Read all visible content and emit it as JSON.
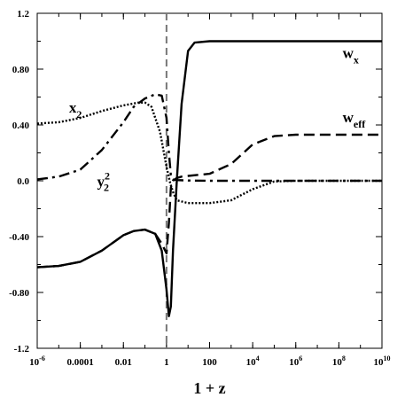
{
  "chart_data": {
    "type": "line",
    "title": "",
    "xlabel": "1 + z",
    "ylabel": "",
    "xscale": "log",
    "xlim": [
      1e-06,
      10000000000.0
    ],
    "ylim": [
      -1.2,
      1.2
    ],
    "grid": false,
    "legend": "none",
    "x_ticks": [
      {
        "value": 1e-06,
        "base": "10",
        "exp": "-6"
      },
      {
        "value": 0.0001,
        "base": "0.0001",
        "exp": ""
      },
      {
        "value": 0.01,
        "base": "0.01",
        "exp": ""
      },
      {
        "value": 1,
        "base": "1",
        "exp": ""
      },
      {
        "value": 100.0,
        "base": "100",
        "exp": ""
      },
      {
        "value": 10000.0,
        "base": "10",
        "exp": "4"
      },
      {
        "value": 1000000.0,
        "base": "10",
        "exp": "6"
      },
      {
        "value": 100000000.0,
        "base": "10",
        "exp": "8"
      },
      {
        "value": 10000000000.0,
        "base": "10",
        "exp": "10"
      }
    ],
    "y_ticks": [
      {
        "value": 1.2,
        "label": "1.2"
      },
      {
        "value": 0.8,
        "label": "0.80"
      },
      {
        "value": 0.4,
        "label": "0.40"
      },
      {
        "value": 0.0,
        "label": "0.0"
      },
      {
        "value": -0.4,
        "label": "-0.40"
      },
      {
        "value": -0.8,
        "label": "-0.80"
      },
      {
        "value": -1.2,
        "label": "-1.2"
      }
    ],
    "vertical_marker": {
      "x": 1,
      "style": "dashed",
      "color": "#777777"
    },
    "annotations": [
      {
        "id": "wx",
        "base": "w",
        "sub": "x",
        "sup": "",
        "x": 150000000.0,
        "y": 0.88
      },
      {
        "id": "weff",
        "base": "w",
        "sub": "eff",
        "sup": "",
        "x": 150000000.0,
        "y": 0.42
      },
      {
        "id": "x2",
        "base": "x",
        "sub": "2",
        "sup": "",
        "x": 3e-05,
        "y": 0.49
      },
      {
        "id": "y22",
        "base": "y",
        "sub": "2",
        "sup": "2",
        "x": 0.0006,
        "y": -0.04
      }
    ],
    "series": [
      {
        "id": "wx",
        "style": "solid",
        "color": "#000000",
        "x": [
          1e-06,
          1e-05,
          0.0001,
          0.001,
          0.01,
          0.03,
          0.1,
          0.3,
          0.6,
          1,
          1.3,
          1.6,
          2,
          3,
          5,
          10,
          20,
          100,
          1000.0,
          10000.0,
          1000000.0,
          100000000.0,
          10000000000.0
        ],
        "y": [
          -0.62,
          -0.61,
          -0.58,
          -0.5,
          -0.39,
          -0.36,
          -0.35,
          -0.38,
          -0.5,
          -0.78,
          -0.97,
          -0.9,
          -0.5,
          0.0,
          0.55,
          0.93,
          0.99,
          1.0,
          1.0,
          1.0,
          1.0,
          1.0,
          1.0
        ]
      },
      {
        "id": "weff",
        "style": "dashed",
        "color": "#000000",
        "x": [
          1e-06,
          1e-05,
          0.0001,
          0.001,
          0.01,
          0.03,
          0.1,
          0.3,
          0.6,
          1,
          1.3,
          1.6,
          2,
          3,
          5,
          10,
          100,
          1000.0,
          10000.0,
          100000.0,
          1000000.0,
          100000000.0,
          10000000000.0
        ],
        "y": [
          -0.62,
          -0.61,
          -0.58,
          -0.5,
          -0.39,
          -0.36,
          -0.35,
          -0.38,
          -0.45,
          -0.52,
          -0.3,
          -0.05,
          0.0,
          0.02,
          0.03,
          0.035,
          0.05,
          0.12,
          0.26,
          0.32,
          0.33,
          0.33,
          0.33
        ]
      },
      {
        "id": "x2",
        "style": "dotted",
        "color": "#000000",
        "x": [
          1e-06,
          1e-05,
          0.0001,
          0.001,
          0.01,
          0.05,
          0.1,
          0.2,
          0.5,
          1,
          1.5,
          2,
          3,
          10,
          100,
          1000.0,
          10000.0,
          100000.0,
          1000000.0,
          10000000000.0
        ],
        "y": [
          0.41,
          0.42,
          0.45,
          0.5,
          0.54,
          0.56,
          0.56,
          0.53,
          0.35,
          0.1,
          -0.02,
          -0.08,
          -0.14,
          -0.16,
          -0.16,
          -0.14,
          -0.06,
          -0.005,
          0.0,
          0.0
        ]
      },
      {
        "id": "y22",
        "style": "dashdot",
        "color": "#000000",
        "x": [
          1e-06,
          1e-05,
          0.0001,
          0.001,
          0.01,
          0.03,
          0.1,
          0.3,
          0.6,
          1,
          1.3,
          1.6,
          2,
          3,
          10,
          100,
          10000000000.0
        ],
        "y": [
          0.01,
          0.03,
          0.08,
          0.22,
          0.42,
          0.53,
          0.59,
          0.62,
          0.61,
          0.45,
          0.2,
          0.04,
          0.01,
          0.005,
          0.002,
          0.0,
          0.0
        ]
      }
    ]
  }
}
